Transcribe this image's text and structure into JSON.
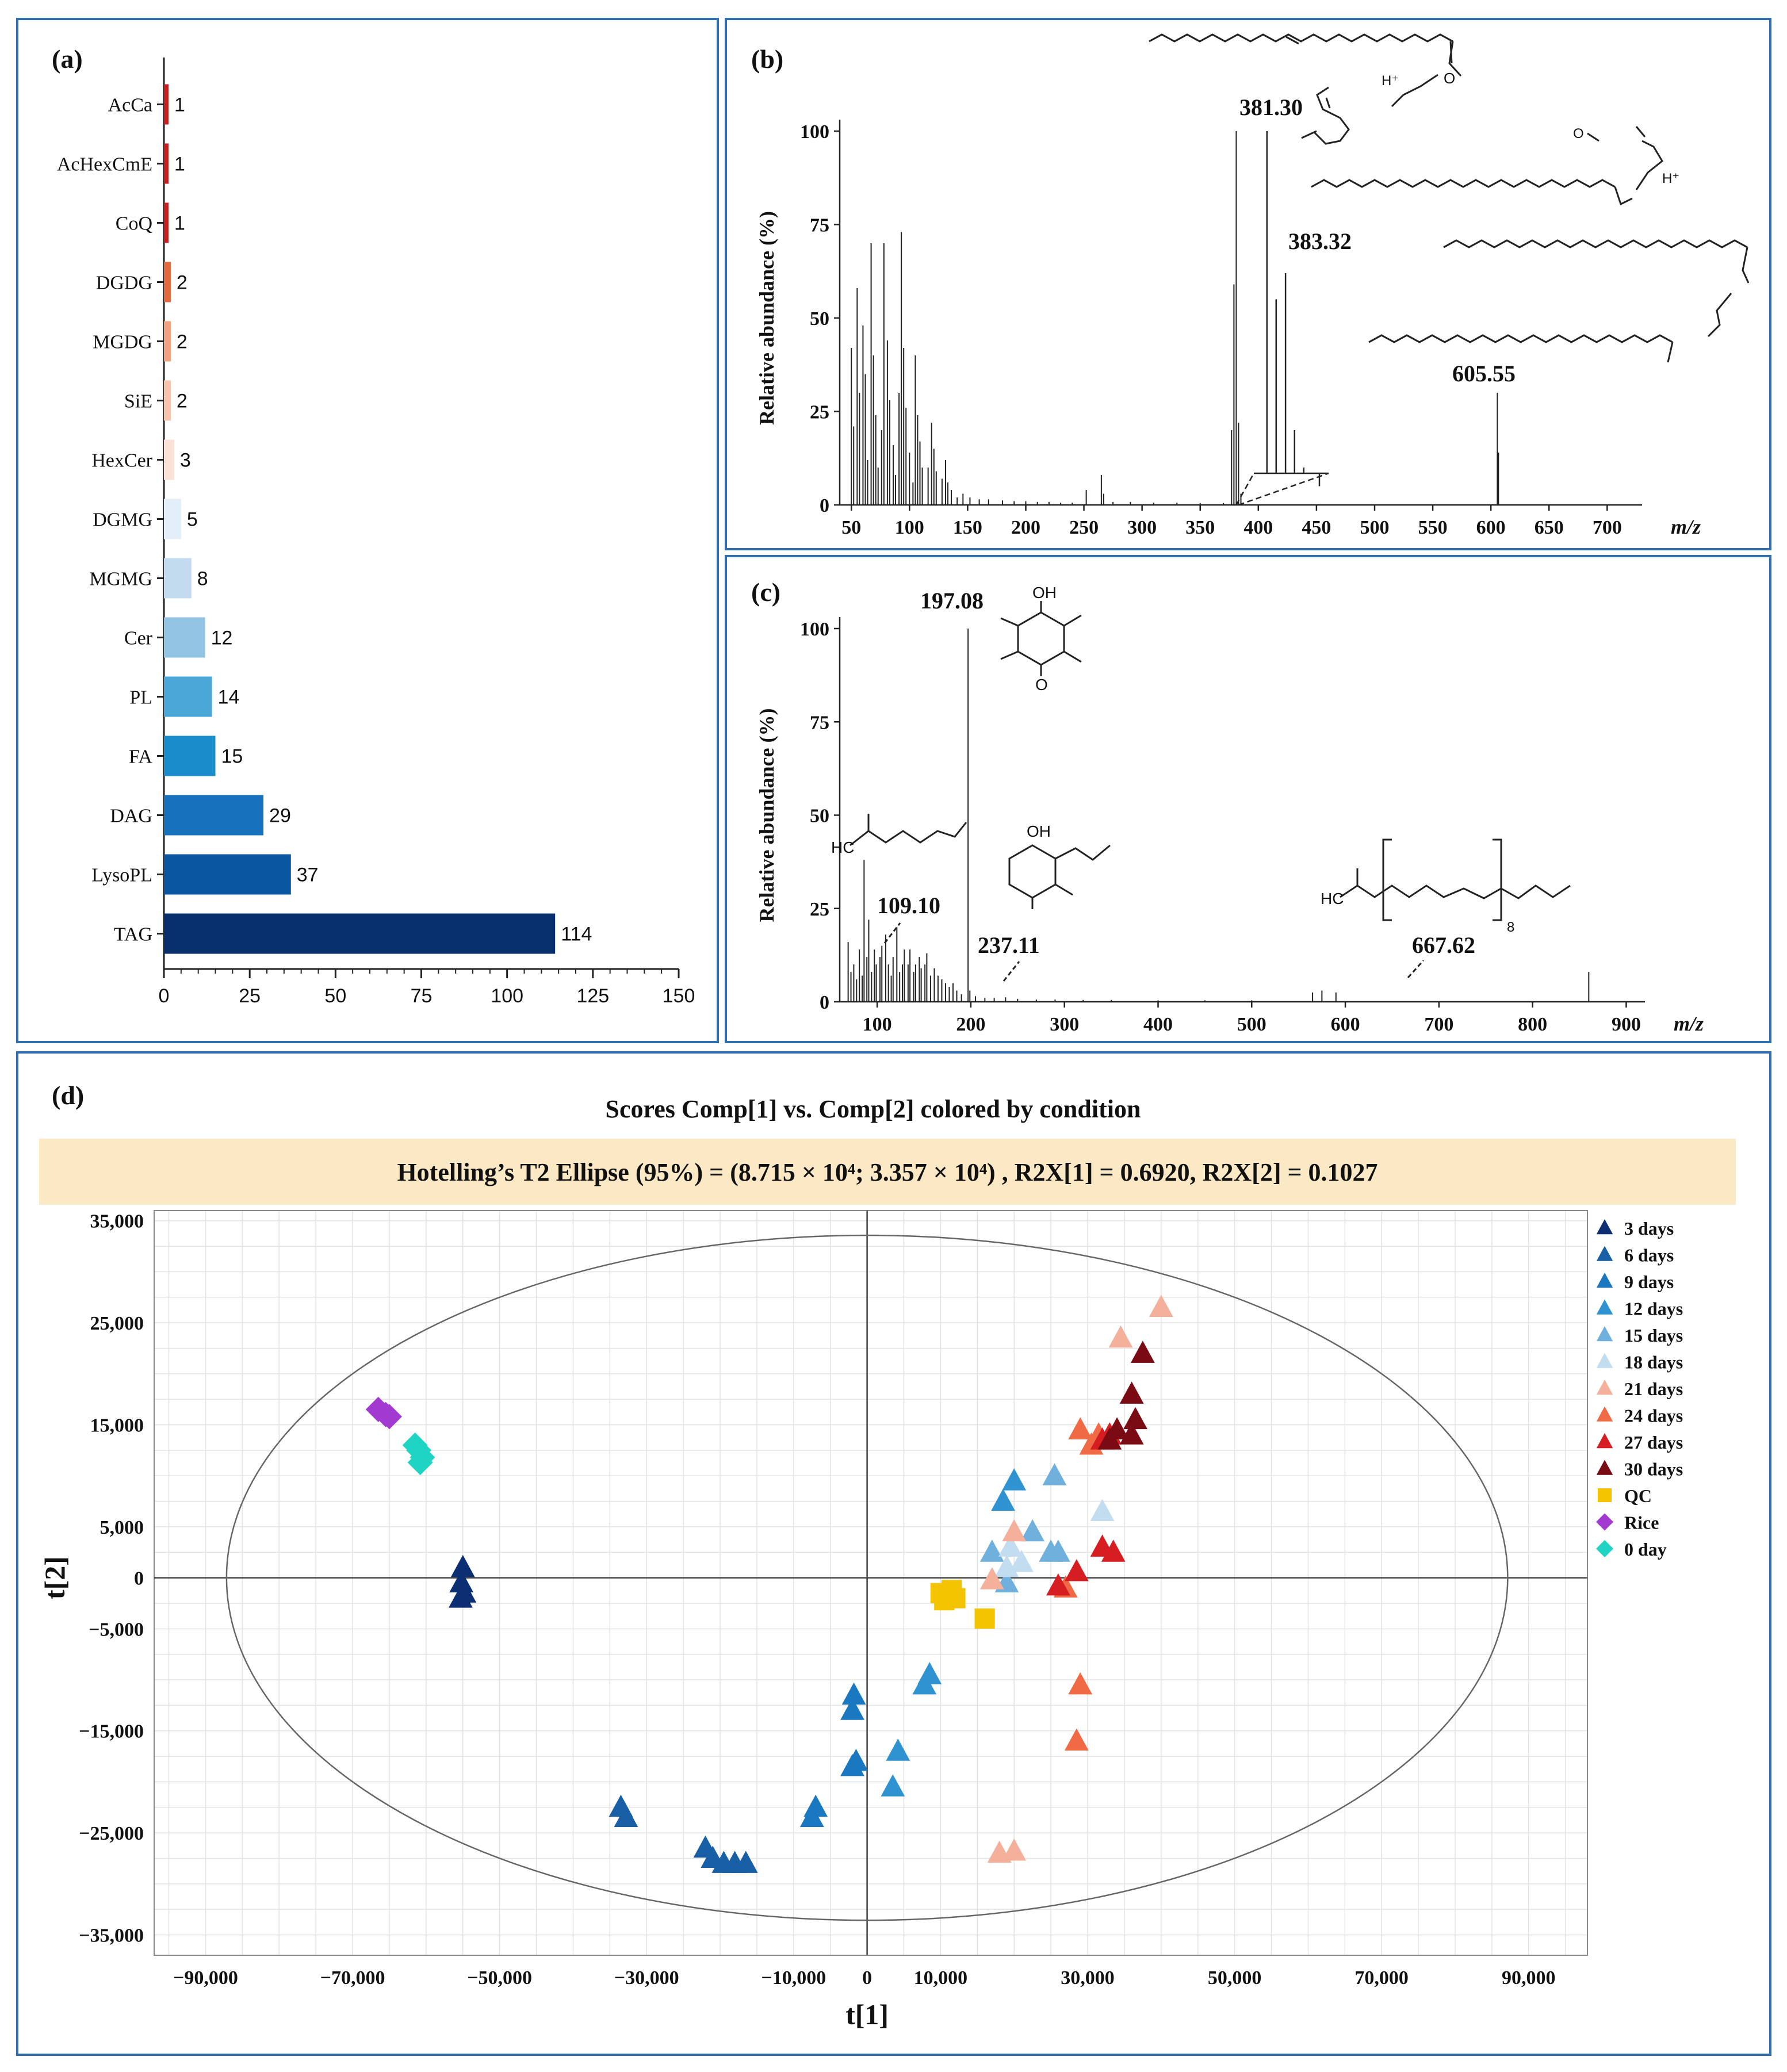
{
  "colors": {
    "frame": "#2f6fb0",
    "t2_banner": "#fbe9c6",
    "ellipse": "#666666",
    "grid": "#e3e3e3",
    "spectrum": "#222222"
  },
  "panel_labels": {
    "a": "(a)",
    "b": "(b)",
    "c": "(c)",
    "d": "(d)"
  },
  "chart_data": [
    {
      "id": "a",
      "type": "bar",
      "orientation": "horizontal",
      "categories": [
        "AcCa",
        "AcHexCmE",
        "CoQ",
        "DGDG",
        "MGDG",
        "SiE",
        "HexCer",
        "DGMG",
        "MGMG",
        "Cer",
        "PL",
        "FA",
        "DAG",
        "LysoPL",
        "TAG"
      ],
      "values": [
        1,
        1,
        1,
        2,
        2,
        2,
        3,
        5,
        8,
        12,
        14,
        15,
        29,
        37,
        114
      ],
      "bar_colors": [
        "#c81e1e",
        "#c81e1e",
        "#c81e1e",
        "#e2683e",
        "#f2a07d",
        "#f7c3ac",
        "#fbe2d6",
        "#e4eef8",
        "#c3dbef",
        "#92c5e4",
        "#4ba7d8",
        "#1a8ccb",
        "#1871bd",
        "#0a56a0",
        "#082f6e"
      ],
      "xlim": [
        0,
        150
      ],
      "xticks": [
        0,
        25,
        50,
        75,
        100,
        125,
        150
      ]
    },
    {
      "id": "b",
      "type": "bar",
      "subtype": "mass-spectrum",
      "ylabel": "Relative abundance (%)",
      "xlabel": "m/z",
      "xlim": [
        40,
        730
      ],
      "ylim": [
        0,
        100
      ],
      "xticks": [
        50,
        100,
        150,
        200,
        250,
        300,
        350,
        400,
        450,
        500,
        550,
        600,
        650,
        700
      ],
      "yticks": [
        0,
        25,
        50,
        75,
        100
      ],
      "peaks": [
        [
          50,
          42
        ],
        [
          52,
          21
        ],
        [
          55,
          58
        ],
        [
          57,
          30
        ],
        [
          60,
          48
        ],
        [
          62,
          35
        ],
        [
          64,
          12
        ],
        [
          67,
          70
        ],
        [
          69,
          40
        ],
        [
          71,
          24
        ],
        [
          73,
          10
        ],
        [
          76,
          20
        ],
        [
          78,
          70
        ],
        [
          81,
          44
        ],
        [
          83,
          28
        ],
        [
          86,
          16
        ],
        [
          88,
          8
        ],
        [
          91,
          30
        ],
        [
          93,
          73
        ],
        [
          95,
          42
        ],
        [
          97,
          26
        ],
        [
          100,
          14
        ],
        [
          103,
          6
        ],
        [
          105,
          40
        ],
        [
          107,
          24
        ],
        [
          109,
          17
        ],
        [
          111,
          10
        ],
        [
          116,
          10
        ],
        [
          119,
          22
        ],
        [
          121,
          15
        ],
        [
          123,
          9
        ],
        [
          128,
          7
        ],
        [
          131,
          12
        ],
        [
          133,
          6
        ],
        [
          136,
          4
        ],
        [
          141,
          2
        ],
        [
          146,
          3
        ],
        [
          152,
          2
        ],
        [
          160,
          1.5
        ],
        [
          168,
          1.5
        ],
        [
          180,
          1.2
        ],
        [
          190,
          1
        ],
        [
          200,
          1
        ],
        [
          210,
          0.8
        ],
        [
          220,
          0.8
        ],
        [
          230,
          0.6
        ],
        [
          240,
          0.6
        ],
        [
          252,
          4
        ],
        [
          265,
          8
        ],
        [
          267,
          3
        ],
        [
          275,
          0.8
        ],
        [
          290,
          0.8
        ],
        [
          310,
          0.6
        ],
        [
          330,
          0.6
        ],
        [
          350,
          0.5
        ],
        [
          370,
          0.5
        ],
        [
          377,
          20
        ],
        [
          379,
          59
        ],
        [
          381,
          100
        ],
        [
          383,
          22
        ],
        [
          385,
          3
        ],
        [
          605.55,
          30
        ],
        [
          606.5,
          14
        ]
      ],
      "inset_peaks": [
        [
          381.3,
          100
        ],
        [
          382.3,
          55
        ],
        [
          383.32,
          62
        ],
        [
          384.3,
          20
        ],
        [
          385.3,
          10
        ],
        [
          387,
          5
        ]
      ],
      "annotations": [
        {
          "text": "381.30",
          "x": 381.3
        },
        {
          "text": "383.32",
          "x": 383.32
        },
        {
          "text": "605.55",
          "x": 605.55
        }
      ]
    },
    {
      "id": "c",
      "type": "bar",
      "subtype": "mass-spectrum",
      "ylabel": "Relative abundance (%)",
      "xlabel": "m/z",
      "xlim": [
        60,
        920
      ],
      "ylim": [
        0,
        100
      ],
      "xticks": [
        100,
        200,
        300,
        400,
        500,
        600,
        700,
        800,
        900
      ],
      "yticks": [
        0,
        25,
        50,
        75,
        100
      ],
      "peaks": [
        [
          69,
          16
        ],
        [
          72,
          8
        ],
        [
          75,
          10
        ],
        [
          78,
          6
        ],
        [
          81,
          14
        ],
        [
          84,
          7
        ],
        [
          86,
          38
        ],
        [
          89,
          12
        ],
        [
          91,
          22
        ],
        [
          94,
          8
        ],
        [
          97,
          14
        ],
        [
          99,
          10
        ],
        [
          103,
          12
        ],
        [
          105,
          15
        ],
        [
          109.1,
          18
        ],
        [
          112,
          10
        ],
        [
          115,
          7
        ],
        [
          117,
          12
        ],
        [
          121,
          20
        ],
        [
          124,
          8
        ],
        [
          127,
          10
        ],
        [
          129,
          14
        ],
        [
          133,
          10
        ],
        [
          135,
          14
        ],
        [
          139,
          8
        ],
        [
          141,
          10
        ],
        [
          145,
          12
        ],
        [
          147,
          9
        ],
        [
          151,
          10
        ],
        [
          153,
          13
        ],
        [
          157,
          7
        ],
        [
          161,
          9
        ],
        [
          165,
          7
        ],
        [
          169,
          6
        ],
        [
          173,
          5
        ],
        [
          177,
          4
        ],
        [
          181,
          5
        ],
        [
          185,
          3
        ],
        [
          190,
          2
        ],
        [
          197.08,
          100
        ],
        [
          199,
          3
        ],
        [
          205,
          1.5
        ],
        [
          215,
          1
        ],
        [
          225,
          1
        ],
        [
          237.11,
          1.2
        ],
        [
          250,
          0.8
        ],
        [
          270,
          0.6
        ],
        [
          290,
          0.6
        ],
        [
          320,
          0.5
        ],
        [
          350,
          0.5
        ],
        [
          400,
          0.4
        ],
        [
          450,
          0.4
        ],
        [
          500,
          0.4
        ],
        [
          565,
          2.5
        ],
        [
          575,
          3
        ],
        [
          590,
          2.5
        ],
        [
          860,
          8
        ]
      ],
      "annotations": [
        {
          "text": "197.08",
          "x": 197.08
        },
        {
          "text": "109.10",
          "x": 109.1
        },
        {
          "text": "237.11",
          "x": 237.11
        },
        {
          "text": "667.62",
          "x": 667.62
        }
      ]
    },
    {
      "id": "d",
      "type": "scatter",
      "title": "Scores Comp[1] vs. Comp[2] colored by condition",
      "subtitle": "Hotelling’s T2 Ellipse (95%) = (8.715 × 10⁴; 3.357 × 10⁴) , R2X[1] = 0.6920, R2X[2] = 0.1027",
      "xlabel": "t[1]",
      "ylabel": "t[2]",
      "xlim": [
        -97000,
        98000
      ],
      "ylim": [
        -37000,
        36000
      ],
      "xticks": [
        -90000,
        -70000,
        -50000,
        -30000,
        -10000,
        0,
        10000,
        30000,
        50000,
        70000,
        90000
      ],
      "xtick_labels": [
        "−90,000",
        "−70,000",
        "−50,000",
        "−30,000",
        "−10,000",
        "0",
        "10,000",
        "30,000",
        "50,000",
        "70,000",
        "90,000"
      ],
      "yticks": [
        35000,
        25000,
        15000,
        5000,
        0,
        -5000,
        -15000,
        -25000,
        -35000
      ],
      "ytick_labels": [
        "35,000",
        "25,000",
        "15,000",
        "5,000",
        "0",
        "−5,000",
        "−15,000",
        "−25,000",
        "−35,000"
      ],
      "ellipse": {
        "a": 87150,
        "b": 33570
      },
      "legend_position": "right",
      "series": [
        {
          "name": "3 days",
          "color": "#0b2f72",
          "marker": "triangle",
          "points": [
            [
              -55000,
              1000
            ],
            [
              -55200,
              -500
            ],
            [
              -54800,
              -1500
            ],
            [
              -55300,
              -2000
            ]
          ]
        },
        {
          "name": "6 days",
          "color": "#185fa6",
          "marker": "triangle",
          "points": [
            [
              -33500,
              -22500
            ],
            [
              -32800,
              -23500
            ],
            [
              -22000,
              -26500
            ],
            [
              -21000,
              -27500
            ],
            [
              -19500,
              -28000
            ],
            [
              -18000,
              -28000
            ],
            [
              -16500,
              -28000
            ]
          ]
        },
        {
          "name": "9 days",
          "color": "#1a78c0",
          "marker": "triangle",
          "points": [
            [
              -7500,
              -23500
            ],
            [
              -7000,
              -22500
            ],
            [
              -2000,
              -18500
            ],
            [
              -1500,
              -18000
            ],
            [
              -2000,
              -13000
            ],
            [
              -1800,
              -11500
            ]
          ]
        },
        {
          "name": "12 days",
          "color": "#2f93d1",
          "marker": "triangle",
          "points": [
            [
              3500,
              -20500
            ],
            [
              4200,
              -17000
            ],
            [
              7800,
              -10500
            ],
            [
              8500,
              -9500
            ],
            [
              18500,
              7500
            ],
            [
              20000,
              9500
            ]
          ]
        },
        {
          "name": "15 days",
          "color": "#6fb0dd",
          "marker": "triangle",
          "points": [
            [
              17000,
              2500
            ],
            [
              22500,
              4500
            ],
            [
              25000,
              2500
            ],
            [
              26000,
              2500
            ],
            [
              25500,
              10000
            ],
            [
              19000,
              -500
            ]
          ]
        },
        {
          "name": "18 days",
          "color": "#c2dcf0",
          "marker": "triangle",
          "points": [
            [
              19500,
              3000
            ],
            [
              21000,
              1500
            ],
            [
              19000,
              1000
            ],
            [
              32000,
              6500
            ]
          ]
        },
        {
          "name": "21 days",
          "color": "#f4b09a",
          "marker": "triangle",
          "points": [
            [
              20000,
              4500
            ],
            [
              17000,
              -200
            ],
            [
              34500,
              23500
            ],
            [
              40000,
              26500
            ],
            [
              18000,
              -27000
            ],
            [
              20000,
              -26800
            ]
          ]
        },
        {
          "name": "24 days",
          "color": "#ef6a45",
          "marker": "triangle",
          "points": [
            [
              29000,
              14500
            ],
            [
              30500,
              13000
            ],
            [
              31500,
              14000
            ],
            [
              27000,
              -1000
            ],
            [
              29000,
              -10500
            ],
            [
              28500,
              -16000
            ]
          ]
        },
        {
          "name": "27 days",
          "color": "#d51d22",
          "marker": "triangle",
          "points": [
            [
              26000,
              -800
            ],
            [
              28500,
              600
            ],
            [
              32000,
              3000
            ],
            [
              33500,
              2500
            ],
            [
              32000,
              13500
            ],
            [
              33000,
              14000
            ]
          ]
        },
        {
          "name": "30 days",
          "color": "#7a0a14",
          "marker": "triangle",
          "points": [
            [
              37500,
              22000
            ],
            [
              36000,
              18000
            ],
            [
              36500,
              15500
            ],
            [
              34000,
              14500
            ],
            [
              36000,
              14000
            ],
            [
              33000,
              13500
            ]
          ]
        },
        {
          "name": "QC",
          "color": "#f5c400",
          "marker": "square",
          "points": [
            [
              10000,
              -1500
            ],
            [
              11000,
              -1800
            ],
            [
              12000,
              -2000
            ],
            [
              11500,
              -1200
            ],
            [
              10500,
              -2200
            ],
            [
              16000,
              -4000
            ]
          ]
        },
        {
          "name": "Rice",
          "color": "#a23ad2",
          "marker": "diamond",
          "points": [
            [
              -66500,
              16500
            ],
            [
              -65500,
              16000
            ],
            [
              -65000,
              15800
            ]
          ]
        },
        {
          "name": "0 day",
          "color": "#1fd4c2",
          "marker": "diamond",
          "points": [
            [
              -61500,
              13000
            ],
            [
              -61000,
              12500
            ],
            [
              -60500,
              11800
            ],
            [
              -60800,
              11300
            ]
          ]
        }
      ]
    }
  ]
}
